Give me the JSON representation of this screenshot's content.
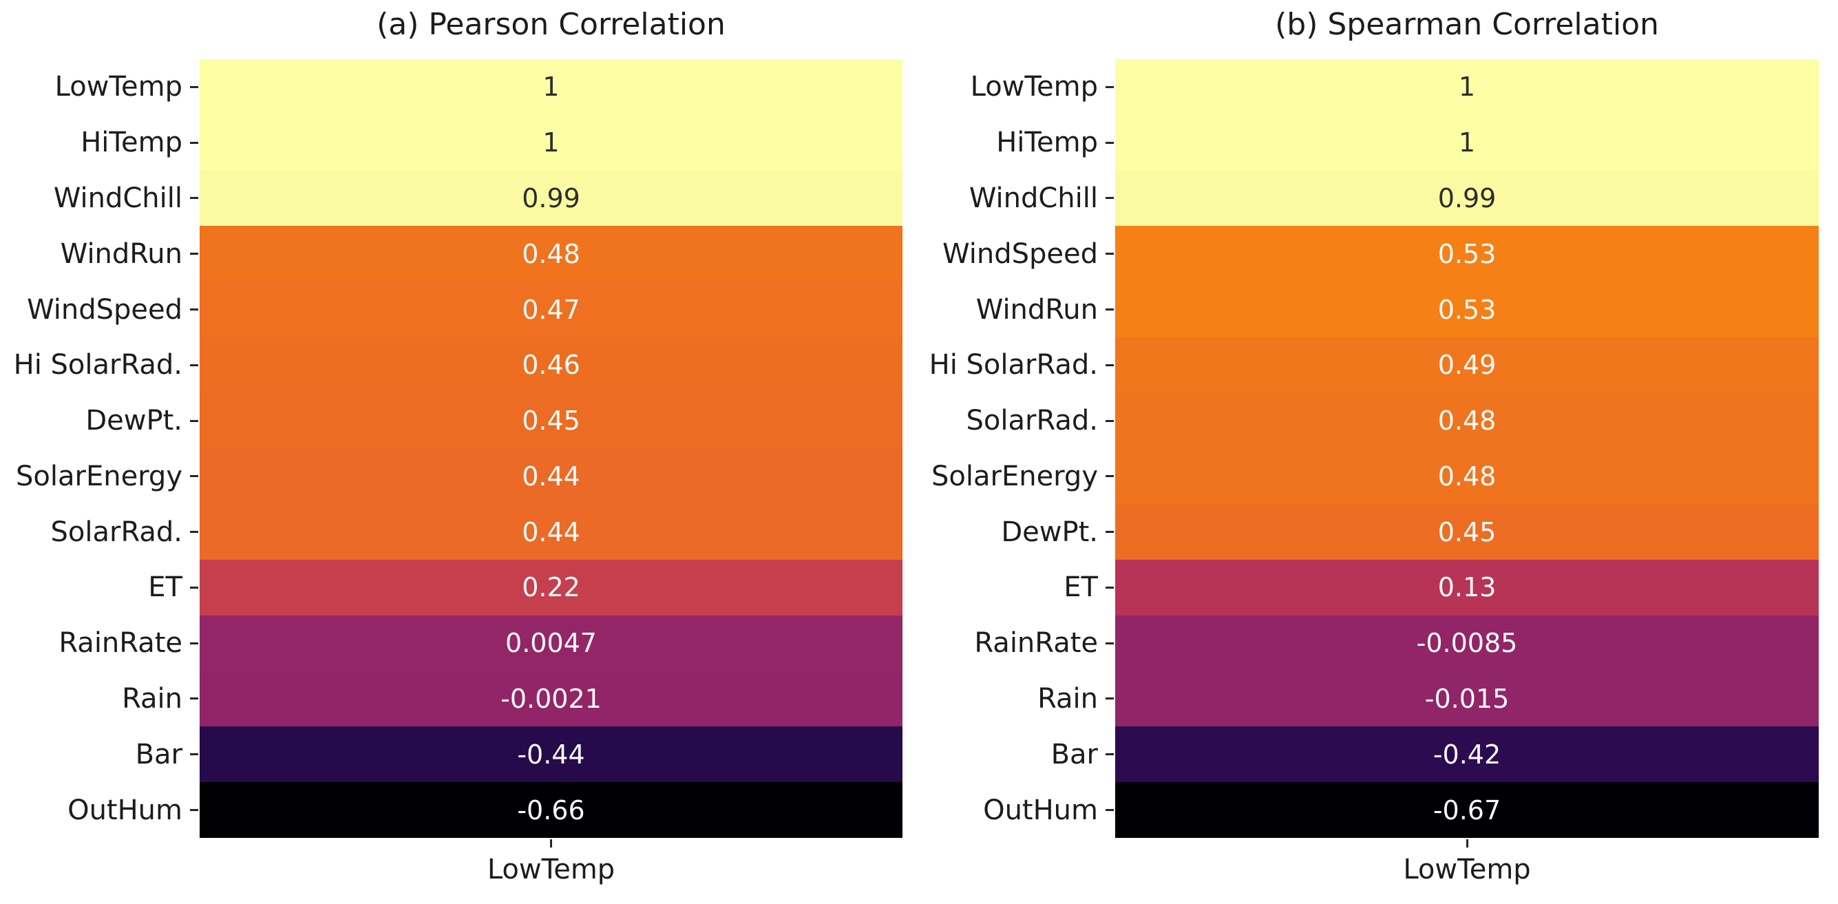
{
  "colors": {
    "background": "#ffffff",
    "label_text": "#1c1c1c",
    "tick_mark": "#262626",
    "annot_dark": "#2d2d2d",
    "annot_light": "#fafafa"
  },
  "panels": [
    {
      "title": "(a) Pearson Correlation",
      "x_tick_label": "LowTemp",
      "rows": [
        {
          "label": "LowTemp",
          "value": "1",
          "color": "#fcffa4",
          "text": "dark"
        },
        {
          "label": "HiTemp",
          "value": "1",
          "color": "#fcffa4",
          "text": "dark"
        },
        {
          "label": "WindChill",
          "value": "0.99",
          "color": "#f9faa1",
          "text": "dark"
        },
        {
          "label": "WindRun",
          "value": "0.48",
          "color": "#f0731d",
          "text": "light"
        },
        {
          "label": "WindSpeed",
          "value": "0.47",
          "color": "#ef7020",
          "text": "light"
        },
        {
          "label": "Hi SolarRad.",
          "value": "0.46",
          "color": "#ed6e21",
          "text": "light"
        },
        {
          "label": "DewPt.",
          "value": "0.45",
          "color": "#ec6c23",
          "text": "light"
        },
        {
          "label": "SolarEnergy",
          "value": "0.44",
          "color": "#eb6a25",
          "text": "light"
        },
        {
          "label": "SolarRad.",
          "value": "0.44",
          "color": "#eb6a25",
          "text": "light"
        },
        {
          "label": "ET",
          "value": "0.22",
          "color": "#c63f4c",
          "text": "light"
        },
        {
          "label": "RainRate",
          "value": "0.0047",
          "color": "#932667",
          "text": "light"
        },
        {
          "label": "Rain",
          "value": "-0.0021",
          "color": "#912567",
          "text": "light"
        },
        {
          "label": "Bar",
          "value": "-0.44",
          "color": "#250b49",
          "text": "light"
        },
        {
          "label": "OutHum",
          "value": "-0.66",
          "color": "#000004",
          "text": "light"
        }
      ]
    },
    {
      "title": "(b) Spearman Correlation",
      "x_tick_label": "LowTemp",
      "rows": [
        {
          "label": "LowTemp",
          "value": "1",
          "color": "#fcffa4",
          "text": "dark"
        },
        {
          "label": "HiTemp",
          "value": "1",
          "color": "#fcffa4",
          "text": "dark"
        },
        {
          "label": "WindChill",
          "value": "0.99",
          "color": "#f9faa1",
          "text": "dark"
        },
        {
          "label": "WindSpeed",
          "value": "0.53",
          "color": "#f58016",
          "text": "light"
        },
        {
          "label": "WindRun",
          "value": "0.53",
          "color": "#f58016",
          "text": "light"
        },
        {
          "label": "Hi SolarRad.",
          "value": "0.49",
          "color": "#f2761b",
          "text": "light"
        },
        {
          "label": "SolarRad.",
          "value": "0.48",
          "color": "#f0741d",
          "text": "light"
        },
        {
          "label": "SolarEnergy",
          "value": "0.48",
          "color": "#f0741d",
          "text": "light"
        },
        {
          "label": "DewPt.",
          "value": "0.45",
          "color": "#ed6d23",
          "text": "light"
        },
        {
          "label": "ET",
          "value": "0.13",
          "color": "#b83456",
          "text": "light"
        },
        {
          "label": "RainRate",
          "value": "-0.0085",
          "color": "#912567",
          "text": "light"
        },
        {
          "label": "Rain",
          "value": "-0.015",
          "color": "#902568",
          "text": "light"
        },
        {
          "label": "Bar",
          "value": "-0.42",
          "color": "#2c0b50",
          "text": "light"
        },
        {
          "label": "OutHum",
          "value": "-0.67",
          "color": "#000004",
          "text": "light"
        }
      ]
    }
  ],
  "chart_data": [
    {
      "type": "heatmap",
      "title": "(a) Pearson Correlation",
      "x_categories": [
        "LowTemp"
      ],
      "y_categories": [
        "LowTemp",
        "HiTemp",
        "WindChill",
        "WindRun",
        "WindSpeed",
        "Hi SolarRad.",
        "DewPt.",
        "SolarEnergy",
        "SolarRad.",
        "ET",
        "RainRate",
        "Rain",
        "Bar",
        "OutHum"
      ],
      "values": [
        [
          1
        ],
        [
          1
        ],
        [
          0.99
        ],
        [
          0.48
        ],
        [
          0.47
        ],
        [
          0.46
        ],
        [
          0.45
        ],
        [
          0.44
        ],
        [
          0.44
        ],
        [
          0.22
        ],
        [
          0.0047
        ],
        [
          -0.0021
        ],
        [
          -0.44
        ],
        [
          -0.66
        ]
      ],
      "colormap": "inferno",
      "annotations": true,
      "legend": false,
      "grid": false
    },
    {
      "type": "heatmap",
      "title": "(b) Spearman Correlation",
      "x_categories": [
        "LowTemp"
      ],
      "y_categories": [
        "LowTemp",
        "HiTemp",
        "WindChill",
        "WindSpeed",
        "WindRun",
        "Hi SolarRad.",
        "SolarRad.",
        "SolarEnergy",
        "DewPt.",
        "ET",
        "RainRate",
        "Rain",
        "Bar",
        "OutHum"
      ],
      "values": [
        [
          1
        ],
        [
          1
        ],
        [
          0.99
        ],
        [
          0.53
        ],
        [
          0.53
        ],
        [
          0.49
        ],
        [
          0.48
        ],
        [
          0.48
        ],
        [
          0.45
        ],
        [
          0.13
        ],
        [
          -0.0085
        ],
        [
          -0.015
        ],
        [
          -0.42
        ],
        [
          -0.67
        ]
      ],
      "colormap": "inferno",
      "annotations": true,
      "legend": false,
      "grid": false
    }
  ]
}
